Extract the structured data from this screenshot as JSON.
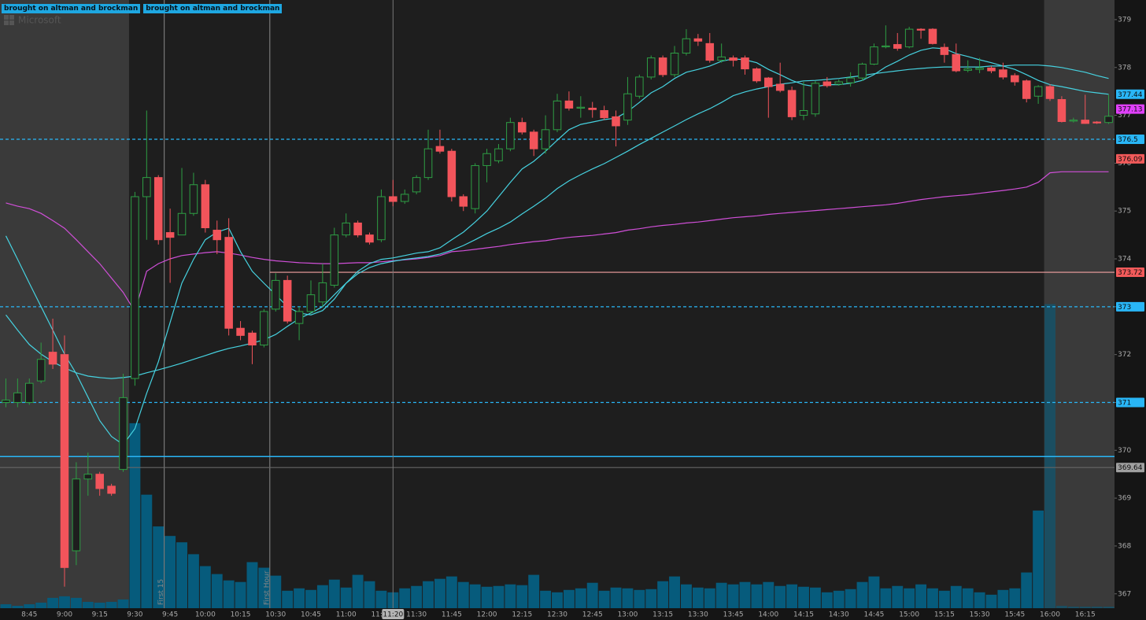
{
  "header": {
    "badges": [
      "brought on altman and brockman",
      "brought on altman and brockman"
    ],
    "watermark": "Microsoft"
  },
  "chart_data": {
    "type": "candlestick",
    "categories": [
      null,
      null,
      "8:45",
      null,
      null,
      "9:00",
      null,
      null,
      "9:15",
      null,
      null,
      "9:30",
      null,
      null,
      "9:45",
      null,
      null,
      "10:00",
      null,
      null,
      "10:15",
      null,
      null,
      "10:30",
      null,
      null,
      "10:45",
      null,
      null,
      "11:00",
      null,
      null,
      "11:15",
      null,
      null,
      "11:30",
      null,
      null,
      "11:45",
      null,
      null,
      "12:00",
      null,
      null,
      "12:15",
      null,
      null,
      "12:30",
      null,
      null,
      "12:45",
      null,
      null,
      "13:00",
      null,
      null,
      "13:15",
      null,
      null,
      "13:30",
      null,
      null,
      "13:45",
      null,
      null,
      "14:00",
      null,
      null,
      "14:15",
      null,
      null,
      "14:30",
      null,
      null,
      "14:45",
      null,
      null,
      "15:00",
      null,
      null,
      "15:15",
      null,
      null,
      "15:30",
      null,
      null,
      "15:45",
      null,
      null,
      "16:00",
      null,
      null,
      "16:15",
      null,
      null
    ],
    "open": [
      371.0,
      371.0,
      371.0,
      371.45,
      372.05,
      372.0,
      367.9,
      369.4,
      369.5,
      369.25,
      369.6,
      371.5,
      375.3,
      375.7,
      374.55,
      374.5,
      374.95,
      375.55,
      374.6,
      374.45,
      372.55,
      372.45,
      372.2,
      372.95,
      373.55,
      372.65,
      372.9,
      373.1,
      373.45,
      374.5,
      374.75,
      374.5,
      374.4,
      375.3,
      375.2,
      375.4,
      375.7,
      376.35,
      376.25,
      375.3,
      375.05,
      375.95,
      376.05,
      376.3,
      376.85,
      376.65,
      376.3,
      376.7,
      377.3,
      377.15,
      377.15,
      377.1,
      376.97,
      376.9,
      377.4,
      377.8,
      378.2,
      377.85,
      378.3,
      378.6,
      378.5,
      378.15,
      378.2,
      378.2,
      377.97,
      377.78,
      377.65,
      377.52,
      377.0,
      377.03,
      377.7,
      377.65,
      377.68,
      377.78,
      378.07,
      378.43,
      378.48,
      378.43,
      378.8,
      378.8,
      378.42,
      378.27,
      377.94,
      377.96,
      377.99,
      377.95,
      377.83,
      377.72,
      377.4,
      377.6,
      377.33,
      376.88,
      376.9,
      376.86,
      376.85
    ],
    "high": [
      371.5,
      371.5,
      371.5,
      372.25,
      372.75,
      372.4,
      369.75,
      369.95,
      369.55,
      369.3,
      371.6,
      375.4,
      377.1,
      375.75,
      375.05,
      375.9,
      375.8,
      375.65,
      374.8,
      374.85,
      372.7,
      372.5,
      372.95,
      373.7,
      373.65,
      373.0,
      373.55,
      373.9,
      374.65,
      374.95,
      374.8,
      374.55,
      375.45,
      375.65,
      375.45,
      375.75,
      376.7,
      376.7,
      376.3,
      375.35,
      376.0,
      376.3,
      376.4,
      376.95,
      376.95,
      376.7,
      377.0,
      377.45,
      377.5,
      377.4,
      377.28,
      377.2,
      377.1,
      377.8,
      377.85,
      378.25,
      378.25,
      378.45,
      378.8,
      378.7,
      378.72,
      378.5,
      378.25,
      378.25,
      378.0,
      377.8,
      378.1,
      377.6,
      377.7,
      377.72,
      377.8,
      377.75,
      377.9,
      378.1,
      378.5,
      378.88,
      378.72,
      378.85,
      378.82,
      378.82,
      378.5,
      378.5,
      378.15,
      378.2,
      378.03,
      378.1,
      377.88,
      377.75,
      377.63,
      377.65,
      377.4,
      376.95,
      377.43,
      376.88,
      377.43
    ],
    "low": [
      370.9,
      370.9,
      370.95,
      371.4,
      371.7,
      367.15,
      367.6,
      369.05,
      369.05,
      369.05,
      369.55,
      371.35,
      374.4,
      374.3,
      373.5,
      374.5,
      374.9,
      374.55,
      374.1,
      372.4,
      372.3,
      371.8,
      372.15,
      372.9,
      372.65,
      372.3,
      372.85,
      373.0,
      373.4,
      374.45,
      374.45,
      374.3,
      374.35,
      375.1,
      375.15,
      375.35,
      375.65,
      376.2,
      375.2,
      375.0,
      374.95,
      375.6,
      376.0,
      376.25,
      376.6,
      376.15,
      376.2,
      376.65,
      377.1,
      376.95,
      376.95,
      376.9,
      376.35,
      376.8,
      377.35,
      377.75,
      377.8,
      377.8,
      378.25,
      378.45,
      378.1,
      378.1,
      378.02,
      377.85,
      377.68,
      376.95,
      377.48,
      376.9,
      376.9,
      376.97,
      377.58,
      377.62,
      377.6,
      377.72,
      378.05,
      378.4,
      378.35,
      378.4,
      378.6,
      378.48,
      378.1,
      377.9,
      377.9,
      377.88,
      377.88,
      377.75,
      377.62,
      377.27,
      377.24,
      377.3,
      376.85,
      376.85,
      376.82,
      376.82,
      376.82
    ],
    "close": [
      371.05,
      371.2,
      371.4,
      371.9,
      371.8,
      367.55,
      369.4,
      369.5,
      369.2,
      369.1,
      371.1,
      375.3,
      375.7,
      374.4,
      374.45,
      374.95,
      375.55,
      374.65,
      374.4,
      372.55,
      372.4,
      372.2,
      372.9,
      373.55,
      372.7,
      372.9,
      373.25,
      373.5,
      374.5,
      374.75,
      374.5,
      374.35,
      375.3,
      375.2,
      375.35,
      375.7,
      376.3,
      376.25,
      375.3,
      375.1,
      375.95,
      376.2,
      376.3,
      376.85,
      376.65,
      376.3,
      376.7,
      377.3,
      377.15,
      377.17,
      377.12,
      376.95,
      376.78,
      377.45,
      377.8,
      378.2,
      377.85,
      378.3,
      378.6,
      378.55,
      378.15,
      378.22,
      378.15,
      377.97,
      377.72,
      377.6,
      377.52,
      376.97,
      377.1,
      377.67,
      377.62,
      377.7,
      377.78,
      378.07,
      378.43,
      378.45,
      378.4,
      378.8,
      378.78,
      378.5,
      378.27,
      377.93,
      377.97,
      377.99,
      377.93,
      377.8,
      377.7,
      377.35,
      377.6,
      377.35,
      376.87,
      376.9,
      376.83,
      376.84,
      376.98
    ],
    "volume": [
      5,
      3,
      5,
      7,
      13,
      15,
      13,
      8,
      7,
      8,
      11,
      233,
      143,
      103,
      91,
      83,
      68,
      53,
      43,
      35,
      33,
      58,
      51,
      41,
      22,
      25,
      23,
      29,
      36,
      26,
      42,
      34,
      22,
      20,
      25,
      28,
      34,
      37,
      40,
      33,
      30,
      27,
      28,
      30,
      29,
      42,
      22,
      20,
      23,
      25,
      32,
      22,
      26,
      25,
      23,
      24,
      34,
      40,
      30,
      26,
      25,
      32,
      30,
      33,
      30,
      33,
      28,
      30,
      27,
      26,
      20,
      22,
      24,
      33,
      40,
      25,
      28,
      25,
      30,
      25,
      22,
      28,
      25,
      20,
      17,
      23,
      25,
      45,
      123,
      383,
      3,
      2,
      2,
      2,
      2
    ],
    "up_color": "#2e9e44",
    "down_color": "#f2545b",
    "volume_color": "#065b7c",
    "series": [
      {
        "color": "#d04fd8",
        "values": [
          375.17,
          375.1,
          375.05,
          374.95,
          374.8,
          374.64,
          374.4,
          374.15,
          373.9,
          373.6,
          373.3,
          372.9,
          373.74,
          373.9,
          374.0,
          374.07,
          374.1,
          374.13,
          374.15,
          374.12,
          374.08,
          374.03,
          373.99,
          373.96,
          373.94,
          373.92,
          373.91,
          373.9,
          373.9,
          373.91,
          373.92,
          373.92,
          373.94,
          373.96,
          373.98,
          374.0,
          374.03,
          374.07,
          374.15,
          374.17,
          374.2,
          374.23,
          374.26,
          374.3,
          374.33,
          374.36,
          374.38,
          374.42,
          374.45,
          374.47,
          374.49,
          374.52,
          374.55,
          374.6,
          374.63,
          374.67,
          374.7,
          374.72,
          374.75,
          374.77,
          374.8,
          374.83,
          374.86,
          374.88,
          374.9,
          374.93,
          374.95,
          374.97,
          374.99,
          375.01,
          375.03,
          375.05,
          375.07,
          375.09,
          375.11,
          375.13,
          375.16,
          375.2,
          375.24,
          375.27,
          375.3,
          375.32,
          375.34,
          375.37,
          375.4,
          375.43,
          375.46,
          375.5,
          375.6,
          375.8,
          375.82,
          375.82,
          375.82,
          375.82,
          375.82
        ]
      },
      {
        "color": "#46d2e0",
        "values": [
          374.48,
          373.99,
          373.49,
          373.0,
          372.51,
          372.01,
          371.6,
          371.11,
          370.62,
          370.29,
          370.12,
          370.45,
          371.19,
          371.85,
          372.67,
          373.49,
          373.99,
          374.4,
          374.56,
          374.64,
          374.15,
          373.74,
          373.49,
          373.25,
          373.0,
          372.87,
          372.83,
          372.92,
          373.16,
          373.49,
          373.74,
          373.9,
          373.99,
          374.02,
          374.07,
          374.12,
          374.15,
          374.23,
          374.4,
          374.56,
          374.77,
          375.0,
          375.3,
          375.6,
          375.88,
          376.04,
          376.25,
          376.48,
          376.7,
          376.81,
          376.86,
          376.91,
          376.94,
          377.08,
          377.27,
          377.47,
          377.6,
          377.77,
          377.9,
          377.96,
          378.03,
          378.13,
          378.18,
          378.16,
          378.1,
          377.96,
          377.85,
          377.73,
          377.64,
          377.6,
          377.64,
          377.64,
          377.67,
          377.73,
          377.85,
          378.01,
          378.13,
          378.26,
          378.36,
          378.41,
          378.39,
          378.29,
          378.23,
          378.16,
          378.1,
          378.03,
          377.96,
          377.85,
          377.73,
          377.64,
          377.6,
          377.55,
          377.5,
          377.47,
          377.44
        ]
      },
      {
        "color": "#46d2e0",
        "values": [
          372.83,
          372.51,
          372.21,
          372.01,
          371.85,
          371.72,
          371.62,
          371.55,
          371.52,
          371.5,
          371.52,
          371.55,
          371.62,
          371.68,
          371.75,
          371.82,
          371.9,
          371.98,
          372.06,
          372.13,
          372.18,
          372.24,
          372.31,
          372.42,
          372.59,
          372.75,
          372.87,
          373.0,
          373.25,
          373.49,
          373.69,
          373.82,
          373.9,
          373.95,
          373.99,
          374.02,
          374.05,
          374.1,
          374.18,
          374.28,
          374.4,
          374.53,
          374.64,
          374.77,
          374.94,
          375.1,
          375.27,
          375.47,
          375.63,
          375.76,
          375.88,
          375.99,
          376.12,
          376.25,
          376.39,
          376.52,
          376.65,
          376.78,
          376.91,
          377.03,
          377.14,
          377.27,
          377.41,
          377.49,
          377.55,
          377.6,
          377.65,
          377.68,
          377.72,
          377.73,
          377.75,
          377.77,
          377.8,
          377.83,
          377.87,
          377.9,
          377.93,
          377.96,
          377.98,
          378.0,
          378.01,
          378.01,
          378.01,
          378.01,
          378.03,
          378.03,
          378.05,
          378.05,
          378.05,
          378.03,
          378.0,
          377.95,
          377.9,
          377.83,
          377.77
        ]
      }
    ],
    "ylim": [
      366.7,
      379.41
    ],
    "yticks": [
      367,
      368,
      369,
      370,
      371,
      372,
      373,
      374,
      375,
      376,
      377,
      378,
      379
    ],
    "levels": [
      {
        "value": 376.5,
        "color": "#29b6f6",
        "dashed": true
      },
      {
        "value": 373,
        "color": "#29b6f6",
        "dashed": true
      },
      {
        "value": 371,
        "color": "#29b6f6",
        "dashed": true
      },
      {
        "value": 373.72,
        "color": "#f4a3a3",
        "dashed": false,
        "start": "10:30",
        "label_color": "#f25a5a"
      },
      {
        "value": 369.64,
        "color": "#666666",
        "dashed": false,
        "label_color": "#a0a0a0"
      }
    ],
    "plain_lines": [
      {
        "value": 369.87,
        "color": "#29b6f6"
      }
    ],
    "tags": [
      {
        "value": 377.44,
        "color": "#29b6f6"
      },
      {
        "value": 377.13,
        "color": "#e040fb"
      },
      {
        "value": 376.09,
        "color": "#f25a5a"
      }
    ],
    "regular_session": [
      "9:30",
      "16:00"
    ],
    "annotations": [
      {
        "text": "First 15",
        "at": "9:45"
      },
      {
        "text": "First Hour",
        "at": "10:30"
      }
    ],
    "cursor": {
      "label": "11:20"
    }
  }
}
